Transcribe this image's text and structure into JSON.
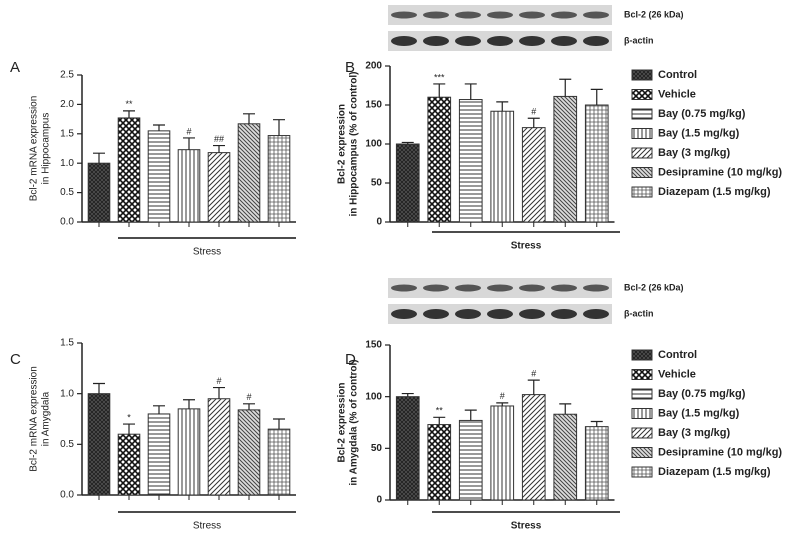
{
  "chart_data": [
    {
      "type": "bar",
      "panel": "A",
      "ylabel": [
        "Bcl-2 mRNA expression",
        "in Hippocampus"
      ],
      "group_label": "Stress",
      "values": [
        1.0,
        1.77,
        1.55,
        1.23,
        1.18,
        1.67,
        1.47
      ],
      "errors": [
        0.17,
        0.12,
        0.1,
        0.2,
        0.12,
        0.17,
        0.27
      ],
      "significance": [
        null,
        "**",
        null,
        "#",
        "##",
        null,
        null
      ],
      "color": "#333333",
      "ylim": [
        0,
        2.5
      ],
      "yticks": [
        {
          "value": 0,
          "label": "0.0"
        },
        0.5,
        {
          "value": 1,
          "label": "1.0"
        },
        1.5,
        {
          "value": 2,
          "label": "2.0"
        },
        2.5
      ]
    },
    {
      "type": "bar",
      "panel": "B",
      "ylabel": [
        "Bcl-2 expression",
        "in Hippocampus (% of control)"
      ],
      "group_label": "Stress",
      "blot_labels": [
        "Bcl-2 (26 kDa)",
        "β-actin"
      ],
      "legend": [
        "Control",
        "Vehicle",
        "Bay (0.75 mg/kg)",
        "Bay (1.5 mg/kg)",
        "Bay (3 mg/kg)",
        "Desipramine (10 mg/kg)",
        "Diazepam (1.5 mg/kg)"
      ],
      "values": [
        100,
        160,
        157,
        142,
        121,
        161,
        150
      ],
      "errors": [
        2,
        17,
        20,
        12,
        12,
        22,
        20
      ],
      "significance": [
        null,
        "***",
        null,
        null,
        "#",
        null,
        null
      ],
      "color": "#333333",
      "ylim": [
        0,
        200
      ],
      "yticks": [
        0,
        50,
        100,
        150,
        200
      ]
    },
    {
      "type": "bar",
      "panel": "C",
      "ylabel": [
        "Bcl-2 mRNA expression",
        "in Amygdala"
      ],
      "group_label": "Stress",
      "values": [
        1.0,
        0.6,
        0.8,
        0.85,
        0.95,
        0.84,
        0.65
      ],
      "errors": [
        0.1,
        0.1,
        0.08,
        0.09,
        0.11,
        0.06,
        0.1
      ],
      "significance": [
        null,
        "*",
        null,
        null,
        "#",
        "#",
        null
      ],
      "color": "#333333",
      "ylim": [
        0,
        1.5
      ],
      "yticks": [
        {
          "value": 0,
          "label": "0.0"
        },
        0.5,
        {
          "value": 1,
          "label": "1.0"
        },
        1.5
      ]
    },
    {
      "type": "bar",
      "panel": "D",
      "ylabel": [
        "Bcl-2 expression",
        "in Amygdala (% of control)"
      ],
      "group_label": "Stress",
      "blot_labels": [
        "Bcl-2 (26 kDa)",
        "β-actin"
      ],
      "legend": [
        "Control",
        "Vehicle",
        "Bay (0.75 mg/kg)",
        "Bay (1.5 mg/kg)",
        "Bay (3 mg/kg)",
        "Desipramine (10 mg/kg)",
        "Diazepam (1.5 mg/kg)"
      ],
      "values": [
        100,
        73,
        77,
        91,
        102,
        83,
        71
      ],
      "errors": [
        3,
        7,
        10,
        3,
        14,
        10,
        5
      ],
      "significance": [
        null,
        "**",
        null,
        "#",
        "#",
        null,
        null
      ],
      "color": "#333333",
      "ylim": [
        0,
        150
      ],
      "yticks": [
        0,
        50,
        100,
        150
      ]
    }
  ]
}
